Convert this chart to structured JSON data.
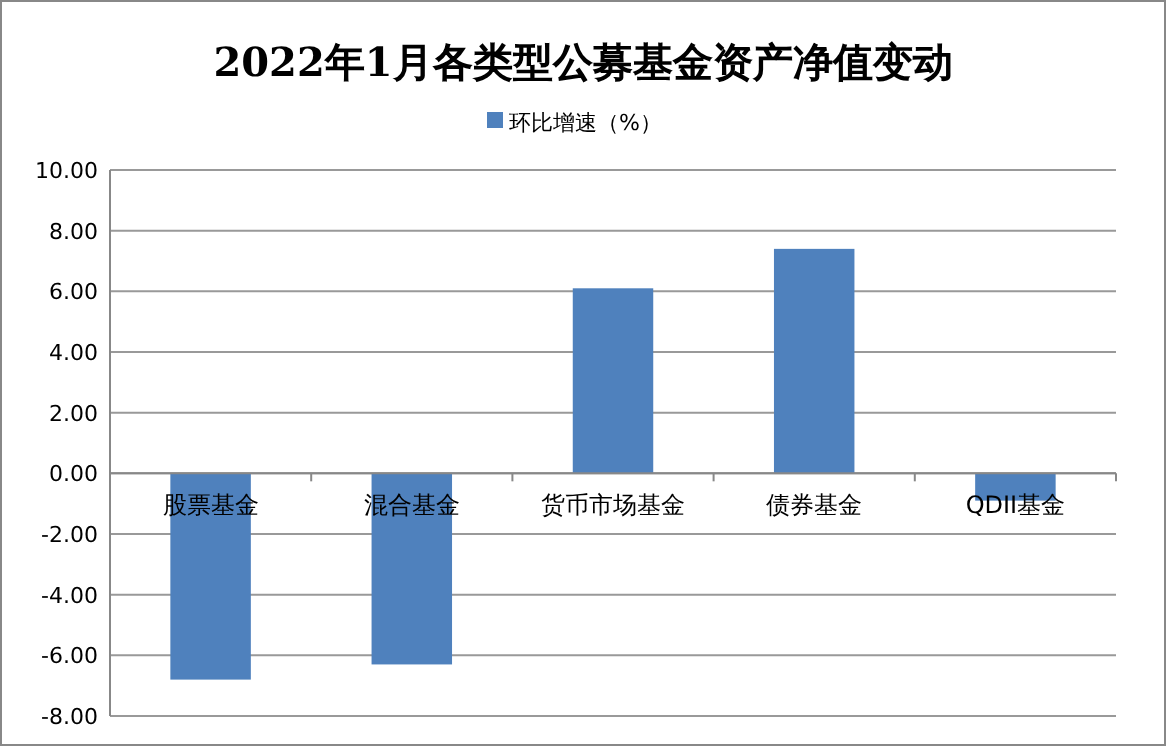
{
  "chart_data": {
    "type": "bar",
    "title": "2022年1月各类型公募基金资产净值变动",
    "categories": [
      "股票基金",
      "混合基金",
      "货币市场基金",
      "债券基金",
      "QDII基金"
    ],
    "series": [
      {
        "name": "环比增速（%）",
        "color": "#4f81bd",
        "values": [
          -6.8,
          -6.3,
          6.1,
          7.4,
          -0.9
        ]
      }
    ],
    "ylim": [
      -8,
      10
    ],
    "yticks": [
      {
        "value": -8,
        "label": "-8.00"
      },
      {
        "value": -6,
        "label": "-6.00"
      },
      {
        "value": -4,
        "label": "-4.00"
      },
      {
        "value": -2,
        "label": "-2.00"
      },
      {
        "value": 0,
        "label": "0.00"
      },
      {
        "value": 2,
        "label": "2.00"
      },
      {
        "value": 4,
        "label": "4.00"
      },
      {
        "value": 6,
        "label": "6.00"
      },
      {
        "value": 8,
        "label": "8.00"
      },
      {
        "value": 10,
        "label": "10.00"
      }
    ],
    "grid": "y",
    "legend": "top"
  }
}
